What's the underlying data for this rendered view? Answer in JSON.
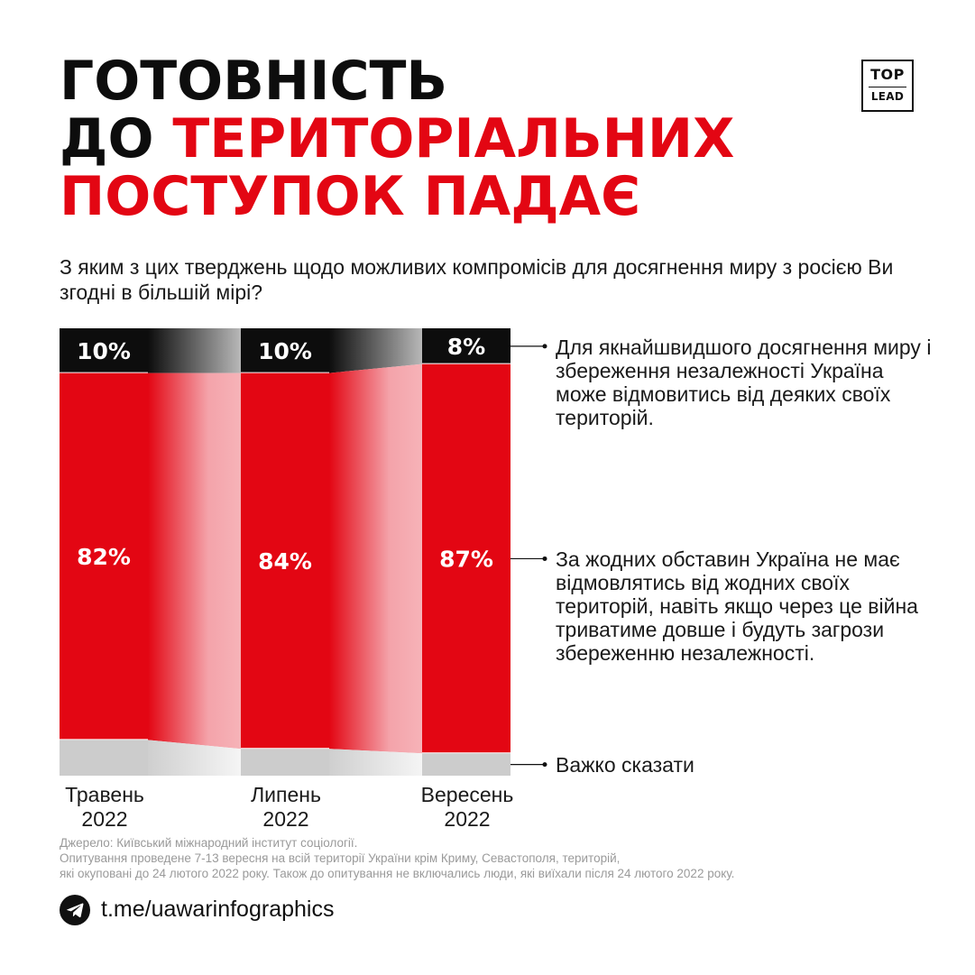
{
  "title": {
    "line1": "ГОТОВНІСТЬ",
    "line2_black": "ДО ",
    "line2_red": "ТЕРИТОРІАЛЬНИХ",
    "line3": "ПОСТУПОК ПАДАЄ"
  },
  "logo": {
    "top": "TOP",
    "bottom": "LEAD"
  },
  "question": "З яким з цих тверджень щодо можливих компромісів для досягнення миру з росією Ви згодні в більшій мірі?",
  "colors": {
    "red": "#e30613",
    "black": "#0d0d0d",
    "gray": "#cccccc",
    "text": "#1a1a1a"
  },
  "chart_data": {
    "type": "bar",
    "stacked": true,
    "categories": [
      "Травень 2022",
      "Липень 2022",
      "Вересень 2022"
    ],
    "series": [
      {
        "name": "Для якнайшвидшого досягнення миру і збереження незалежності Україна може відмовитись від деяких своїх територій.",
        "values": [
          10,
          10,
          8
        ],
        "labels": [
          "10%",
          "10%",
          "8%"
        ],
        "color": "#0d0d0d"
      },
      {
        "name": "За жодних обставин Україна не має відмовлятись від жодних своїх територій, навіть якщо через це війна триватиме довше і будуть загрози збереженню незалежності.",
        "values": [
          82,
          84,
          87
        ],
        "labels": [
          "82%",
          "84%",
          "87%"
        ],
        "color": "#e30613"
      },
      {
        "name": "Важко сказати",
        "values": [
          8,
          6,
          5
        ],
        "color": "#cccccc"
      }
    ],
    "ylim": [
      0,
      100
    ]
  },
  "months": [
    {
      "name": "Травень",
      "year": "2022"
    },
    {
      "name": "Липень",
      "year": "2022"
    },
    {
      "name": "Вересень",
      "year": "2022"
    }
  ],
  "legend": {
    "concede": "Для якнайшвидшого досягнення миру і збереження незалежності Україна може відмовитись від деяких своїх територій.",
    "no_concede": "За жодних обставин Україна не має відмовлятись від жодних своїх територій, навіть якщо через це війна триватиме довше і будуть загрози збереженню незалежності.",
    "hard_to_say": "Важко сказати"
  },
  "source": {
    "line1": "Джерело: Київський міжнародний інститут соціології.",
    "line2": "Опитування проведене 7-13 вересня на всій території України крім Криму, Севастополя, територій,",
    "line3": "які окуповані до 24 лютого 2022 року. Також до опитування не включались люди, які виїхали після 24 лютого 2022 року."
  },
  "telegram": {
    "icon": "telegram-icon",
    "link": "t.me/uawarinfographics"
  }
}
